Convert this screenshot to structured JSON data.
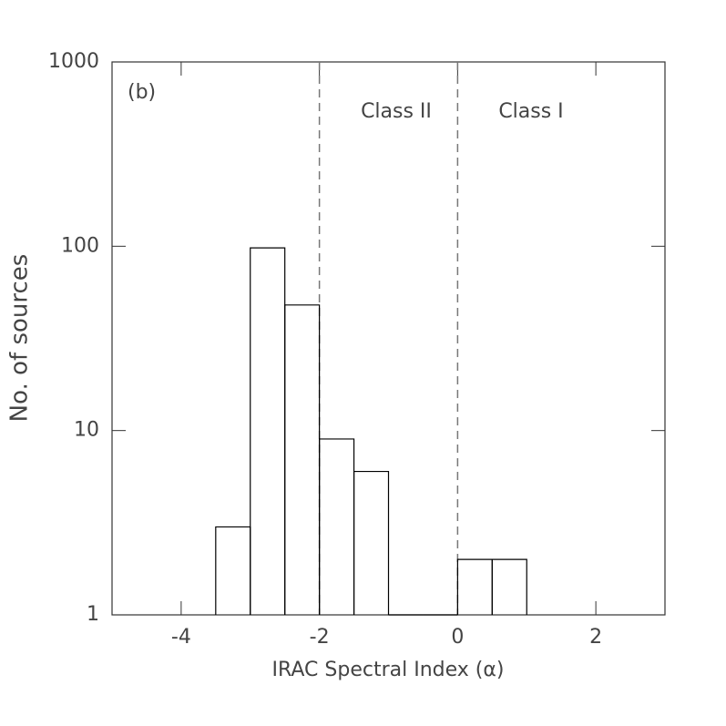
{
  "chart_data": {
    "type": "histogram",
    "x_label": "IRAC Spectral Index (α)",
    "y_label": "No. of sources",
    "annotations": [
      "(b)",
      "Class II",
      "Class I"
    ],
    "bins": [
      -3.5,
      -3,
      -2.5,
      -2,
      -1.5,
      -1,
      -0.5,
      0,
      0.5,
      1
    ],
    "values": [
      3,
      98,
      48,
      9,
      6,
      0,
      0,
      2,
      2
    ],
    "color": "#000000",
    "xlim": [
      -5,
      3
    ],
    "ylim": [
      1,
      1000
    ],
    "ylog": true,
    "xticks": [
      -4,
      -2,
      0,
      2
    ],
    "yticks": [
      1,
      10,
      100,
      1000
    ],
    "vlines": [
      -2,
      0
    ]
  }
}
